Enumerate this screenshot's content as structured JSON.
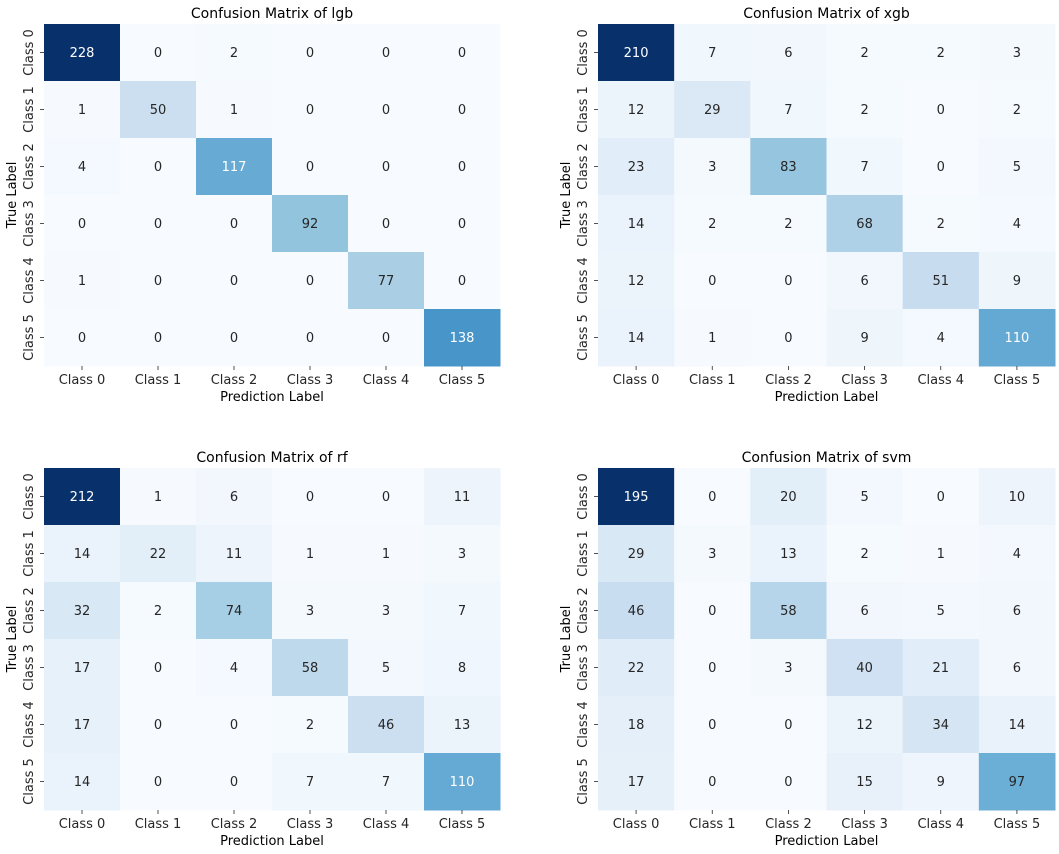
{
  "chart_data": [
    {
      "type": "heatmap",
      "title": "Confusion Matrix of lgb",
      "xlabel": "Prediction Label",
      "ylabel": "True Label",
      "x_categories": [
        "Class 0",
        "Class 1",
        "Class 2",
        "Class 3",
        "Class 4",
        "Class 5"
      ],
      "y_categories": [
        "Class 0",
        "Class 1",
        "Class 2",
        "Class 3",
        "Class 4",
        "Class 5"
      ],
      "colormap": "Blues",
      "colorbar": false,
      "values": [
        [
          228,
          0,
          2,
          0,
          0,
          0
        ],
        [
          1,
          50,
          1,
          0,
          0,
          0
        ],
        [
          4,
          0,
          117,
          0,
          0,
          0
        ],
        [
          0,
          0,
          0,
          92,
          0,
          0
        ],
        [
          1,
          0,
          0,
          0,
          77,
          0
        ],
        [
          0,
          0,
          0,
          0,
          0,
          138
        ]
      ]
    },
    {
      "type": "heatmap",
      "title": "Confusion Matrix of xgb",
      "xlabel": "Prediction Label",
      "ylabel": "True Label",
      "x_categories": [
        "Class 0",
        "Class 1",
        "Class 2",
        "Class 3",
        "Class 4",
        "Class 5"
      ],
      "y_categories": [
        "Class 0",
        "Class 1",
        "Class 2",
        "Class 3",
        "Class 4",
        "Class 5"
      ],
      "colormap": "Blues",
      "colorbar": false,
      "values": [
        [
          210,
          7,
          6,
          2,
          2,
          3
        ],
        [
          12,
          29,
          7,
          2,
          0,
          2
        ],
        [
          23,
          3,
          83,
          7,
          0,
          5
        ],
        [
          14,
          2,
          2,
          68,
          2,
          4
        ],
        [
          12,
          0,
          0,
          6,
          51,
          9
        ],
        [
          14,
          1,
          0,
          9,
          4,
          110
        ]
      ]
    },
    {
      "type": "heatmap",
      "title": "Confusion Matrix of rf",
      "xlabel": "Prediction Label",
      "ylabel": "True Label",
      "x_categories": [
        "Class 0",
        "Class 1",
        "Class 2",
        "Class 3",
        "Class 4",
        "Class 5"
      ],
      "y_categories": [
        "Class 0",
        "Class 1",
        "Class 2",
        "Class 3",
        "Class 4",
        "Class 5"
      ],
      "colormap": "Blues",
      "colorbar": false,
      "values": [
        [
          212,
          1,
          6,
          0,
          0,
          11
        ],
        [
          14,
          22,
          11,
          1,
          1,
          3
        ],
        [
          32,
          2,
          74,
          3,
          3,
          7
        ],
        [
          17,
          0,
          4,
          58,
          5,
          8
        ],
        [
          17,
          0,
          0,
          2,
          46,
          13
        ],
        [
          14,
          0,
          0,
          7,
          7,
          110
        ]
      ]
    },
    {
      "type": "heatmap",
      "title": "Confusion Matrix of svm",
      "xlabel": "Prediction Label",
      "ylabel": "True Label",
      "x_categories": [
        "Class 0",
        "Class 1",
        "Class 2",
        "Class 3",
        "Class 4",
        "Class 5"
      ],
      "y_categories": [
        "Class 0",
        "Class 1",
        "Class 2",
        "Class 3",
        "Class 4",
        "Class 5"
      ],
      "colormap": "Blues",
      "colorbar": false,
      "values": [
        [
          195,
          0,
          20,
          5,
          0,
          10
        ],
        [
          29,
          3,
          13,
          2,
          1,
          4
        ],
        [
          46,
          0,
          58,
          6,
          5,
          6
        ],
        [
          22,
          0,
          3,
          40,
          21,
          6
        ],
        [
          18,
          0,
          0,
          12,
          34,
          14
        ],
        [
          17,
          0,
          0,
          15,
          9,
          97
        ]
      ]
    }
  ]
}
